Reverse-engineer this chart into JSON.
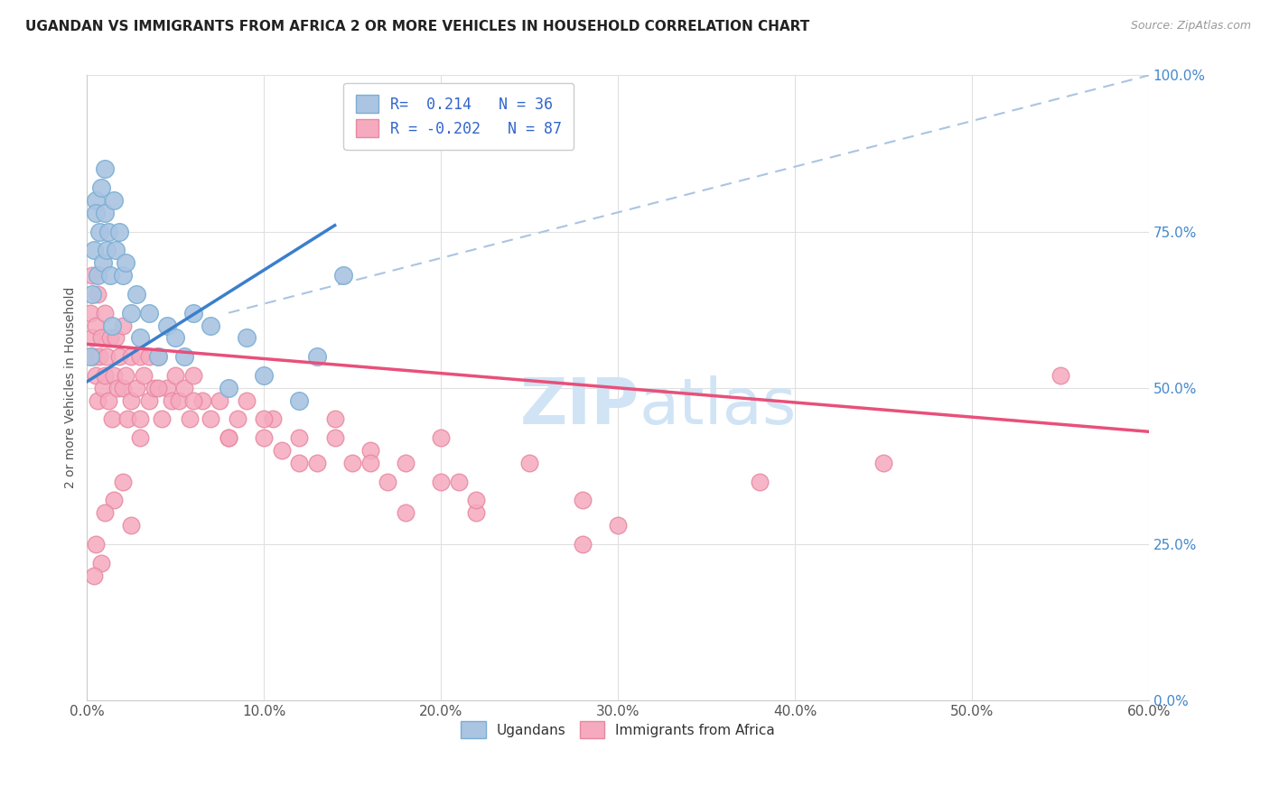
{
  "title": "UGANDAN VS IMMIGRANTS FROM AFRICA 2 OR MORE VEHICLES IN HOUSEHOLD CORRELATION CHART",
  "source": "Source: ZipAtlas.com",
  "ylabel_label": "2 or more Vehicles in Household",
  "legend_label1": "Ugandans",
  "legend_label2": "Immigrants from Africa",
  "R1": 0.214,
  "N1": 36,
  "R2": -0.202,
  "N2": 87,
  "blue_scatter": "#aac4e2",
  "pink_scatter": "#f5aabf",
  "blue_edge": "#7aafd4",
  "pink_edge": "#e888a0",
  "line_blue": "#3a7fcc",
  "line_pink": "#e8507a",
  "line_dashed": "#aac4e2",
  "watermark_color": "#d0e4f5",
  "title_color": "#222222",
  "source_color": "#999999",
  "ytick_color": "#4488cc",
  "xtick_color": "#555555",
  "ylabel_color": "#555555",
  "grid_color": "#e0e0e0",
  "xlim": [
    0,
    60
  ],
  "ylim": [
    0,
    100
  ],
  "x_ticks": [
    0,
    10,
    20,
    30,
    40,
    50,
    60
  ],
  "y_ticks": [
    0,
    25,
    50,
    75,
    100
  ],
  "blue_line_x": [
    0.0,
    14.0
  ],
  "blue_line_y": [
    51.0,
    76.0
  ],
  "pink_line_x": [
    0.0,
    60.0
  ],
  "pink_line_y": [
    57.0,
    43.0
  ],
  "dash_line_x": [
    8.0,
    60.0
  ],
  "dash_line_y": [
    62.0,
    100.0
  ],
  "ug_x": [
    0.2,
    0.3,
    0.4,
    0.5,
    0.5,
    0.6,
    0.7,
    0.8,
    0.9,
    1.0,
    1.0,
    1.1,
    1.2,
    1.3,
    1.4,
    1.5,
    1.6,
    1.8,
    2.0,
    2.2,
    2.5,
    2.8,
    3.0,
    3.5,
    4.0,
    4.5,
    5.0,
    5.5,
    6.0,
    7.0,
    8.0,
    9.0,
    10.0,
    12.0,
    13.0,
    14.5
  ],
  "ug_y": [
    55,
    65,
    72,
    80,
    78,
    68,
    75,
    82,
    70,
    85,
    78,
    72,
    75,
    68,
    60,
    80,
    72,
    75,
    68,
    70,
    62,
    65,
    58,
    62,
    55,
    60,
    58,
    55,
    62,
    60,
    50,
    58,
    52,
    48,
    55,
    68
  ],
  "af_x": [
    0.2,
    0.3,
    0.3,
    0.4,
    0.5,
    0.5,
    0.6,
    0.6,
    0.7,
    0.8,
    0.9,
    1.0,
    1.0,
    1.1,
    1.2,
    1.3,
    1.4,
    1.5,
    1.6,
    1.7,
    1.8,
    2.0,
    2.0,
    2.2,
    2.3,
    2.5,
    2.5,
    2.8,
    3.0,
    3.0,
    3.2,
    3.5,
    3.5,
    3.8,
    4.0,
    4.2,
    4.5,
    4.8,
    5.0,
    5.2,
    5.5,
    5.8,
    6.0,
    6.5,
    7.0,
    7.5,
    8.0,
    8.5,
    9.0,
    10.0,
    10.5,
    11.0,
    12.0,
    13.0,
    14.0,
    15.0,
    16.0,
    17.0,
    18.0,
    20.0,
    21.0,
    22.0,
    25.0,
    28.0,
    30.0,
    18.0,
    20.0,
    22.0,
    16.0,
    14.0,
    12.0,
    10.0,
    8.0,
    6.0,
    4.0,
    3.0,
    2.5,
    2.0,
    1.5,
    1.0,
    0.8,
    0.5,
    0.4,
    28.0,
    55.0,
    38.0,
    45.0
  ],
  "af_y": [
    62,
    58,
    68,
    55,
    60,
    52,
    65,
    48,
    55,
    58,
    50,
    62,
    52,
    55,
    48,
    58,
    45,
    52,
    58,
    50,
    55,
    50,
    60,
    52,
    45,
    55,
    48,
    50,
    55,
    45,
    52,
    55,
    48,
    50,
    55,
    45,
    50,
    48,
    52,
    48,
    50,
    45,
    52,
    48,
    45,
    48,
    42,
    45,
    48,
    42,
    45,
    40,
    42,
    38,
    45,
    38,
    40,
    35,
    38,
    42,
    35,
    30,
    38,
    32,
    28,
    30,
    35,
    32,
    38,
    42,
    38,
    45,
    42,
    48,
    50,
    42,
    28,
    35,
    32,
    30,
    22,
    25,
    20,
    25,
    52,
    35,
    38
  ]
}
